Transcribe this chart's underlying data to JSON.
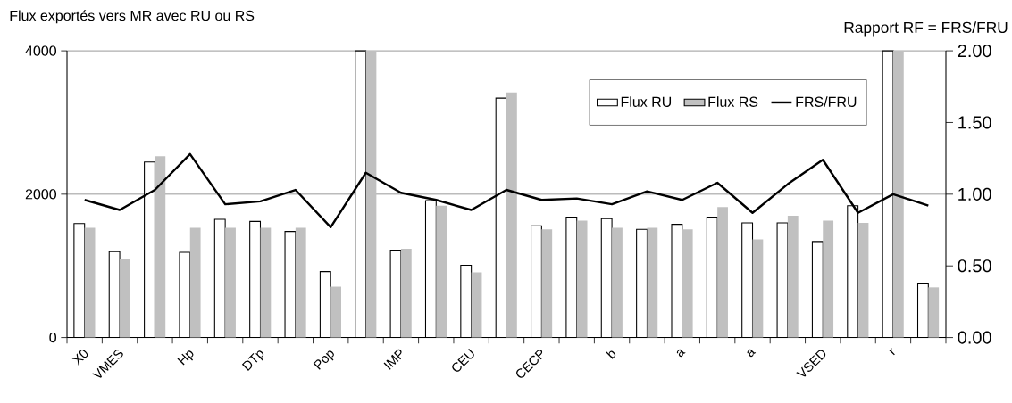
{
  "chart_data": {
    "type": "bar",
    "ylabel": "Flux exportés vers MR avec RU ou RS",
    "y2label": "Rapport RF = FRS/FRU",
    "categories": [
      "X0",
      "VMES",
      null,
      "Hp",
      null,
      "DTp",
      null,
      "Pop",
      null,
      "IMP",
      null,
      "CEU",
      null,
      "CECP",
      null,
      "b",
      null,
      "a",
      null,
      "a",
      null,
      "VSED",
      null,
      "r",
      null
    ],
    "series": [
      {
        "name": "Flux RU",
        "color": "#ffffff",
        "values": [
          1590,
          1200,
          2450,
          1190,
          1650,
          1620,
          1480,
          920,
          4000,
          1220,
          1910,
          1010,
          3340,
          1560,
          1680,
          1660,
          1510,
          1580,
          1680,
          1600,
          1600,
          1340,
          1840,
          4000,
          760
        ]
      },
      {
        "name": "Flux RS",
        "color": "#c0c0c0",
        "values": [
          1530,
          1090,
          2530,
          1530,
          1530,
          1530,
          1530,
          710,
          4000,
          1240,
          1840,
          910,
          3420,
          1510,
          1630,
          1530,
          1530,
          1510,
          1820,
          1370,
          1700,
          1630,
          1600,
          4000,
          700
        ]
      },
      {
        "name": "FRS/FRU",
        "type": "line",
        "axis": "y2",
        "color": "#000000",
        "values": [
          0.96,
          0.89,
          1.03,
          1.28,
          0.93,
          0.95,
          1.03,
          0.77,
          1.15,
          1.01,
          0.96,
          0.89,
          1.03,
          0.96,
          0.97,
          0.93,
          1.02,
          0.96,
          1.08,
          0.87,
          1.07,
          1.24,
          0.87,
          1.0,
          0.92
        ]
      }
    ],
    "ylim": [
      0,
      4000
    ],
    "yticks": [
      0,
      2000,
      4000
    ],
    "y2lim": [
      0,
      2
    ],
    "y2ticks": [
      {
        "value": 0,
        "label": "0.00"
      },
      {
        "value": 0.5,
        "label": "0.50"
      },
      {
        "value": 1,
        "label": "1.00"
      },
      {
        "value": 1.5,
        "label": "1.50"
      },
      {
        "value": 2,
        "label": "2.00"
      }
    ],
    "grid": "y",
    "legend": "top right"
  }
}
